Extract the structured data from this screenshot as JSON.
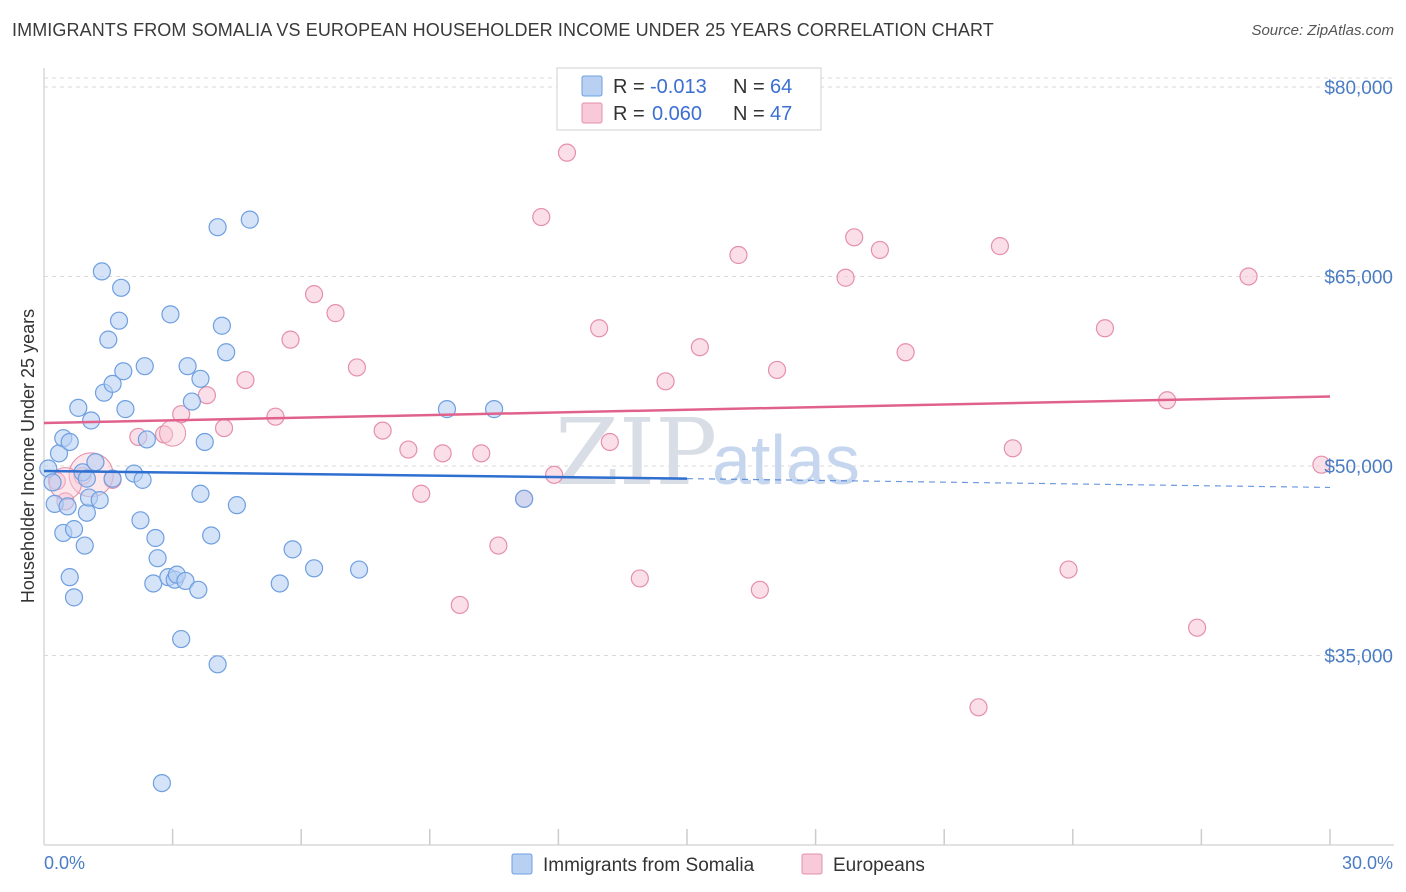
{
  "header": {
    "title": "IMMIGRANTS FROM SOMALIA VS EUROPEAN HOUSEHOLDER INCOME UNDER 25 YEARS CORRELATION CHART",
    "source": "Source: ZipAtlas.com"
  },
  "legend": {
    "r_label": "R =",
    "n_label": "N =",
    "somalia": {
      "r": "-0.013",
      "n": "64"
    },
    "europeans": {
      "r": "0.060",
      "n": "47"
    }
  },
  "watermark": {
    "zip": "ZIP",
    "atlas": "atlas"
  },
  "colors": {
    "somalia_fill": "#b8d1f3",
    "somalia_stroke": "#6f9fe0",
    "somalia_line": "#2f6fd0",
    "europeans_fill": "#f8c9d8",
    "europeans_stroke": "#e58fac",
    "europeans_line": "#e0628c",
    "tick_text": "#4a7cc4",
    "grid": "#d9d9d9"
  },
  "chart_data": {
    "type": "scatter",
    "title": "IMMIGRANTS FROM SOMALIA VS EUROPEAN HOUSEHOLDER INCOME UNDER 25 YEARS CORRELATION CHART",
    "xlabel": "",
    "ylabel": "Householder Income Under 25 years",
    "xlim": [
      0,
      30
    ],
    "ylim": [
      20000,
      81500
    ],
    "x_tick_labels": [
      "0.0%",
      "30.0%"
    ],
    "y_ticks": [
      35000,
      50000,
      65000,
      80000
    ],
    "y_tick_labels": [
      "$35,000",
      "$50,000",
      "$65,000",
      "$80,000"
    ],
    "grid": true,
    "legend_position": "top-center",
    "series": [
      {
        "name": "Immigrants from Somalia",
        "color": "#6f9fe0",
        "trend": {
          "x": [
            0,
            15
          ],
          "y": [
            49600,
            49000
          ],
          "dashed_x": [
            15,
            30
          ],
          "dashed_y": [
            49000,
            48300
          ]
        },
        "points": [
          [
            0.1,
            49800
          ],
          [
            0.2,
            48700
          ],
          [
            0.25,
            47000
          ],
          [
            0.35,
            51000
          ],
          [
            0.45,
            52200
          ],
          [
            0.45,
            44700
          ],
          [
            0.55,
            46800
          ],
          [
            0.6,
            51900
          ],
          [
            0.6,
            41200
          ],
          [
            0.7,
            39600
          ],
          [
            0.7,
            45000
          ],
          [
            0.8,
            54600
          ],
          [
            0.9,
            49500
          ],
          [
            0.95,
            43700
          ],
          [
            1.0,
            46300
          ],
          [
            1.05,
            47500
          ],
          [
            1.1,
            53600
          ],
          [
            1.2,
            50300
          ],
          [
            1.3,
            47300
          ],
          [
            1.35,
            65400
          ],
          [
            1.4,
            55800
          ],
          [
            1.5,
            60000
          ],
          [
            1.6,
            56500
          ],
          [
            1.6,
            49000
          ],
          [
            1.75,
            61500
          ],
          [
            1.8,
            64100
          ],
          [
            1.85,
            57500
          ],
          [
            1.9,
            54500
          ],
          [
            2.1,
            49400
          ],
          [
            2.25,
            45700
          ],
          [
            2.3,
            48900
          ],
          [
            2.35,
            57900
          ],
          [
            2.4,
            52100
          ],
          [
            2.55,
            40700
          ],
          [
            2.6,
            44300
          ],
          [
            2.65,
            42700
          ],
          [
            2.75,
            24900
          ],
          [
            2.9,
            41200
          ],
          [
            2.95,
            62000
          ],
          [
            3.05,
            41000
          ],
          [
            3.1,
            41400
          ],
          [
            3.2,
            36300
          ],
          [
            3.3,
            40900
          ],
          [
            3.35,
            57900
          ],
          [
            3.45,
            55100
          ],
          [
            3.6,
            40200
          ],
          [
            3.65,
            56900
          ],
          [
            3.65,
            47800
          ],
          [
            3.75,
            51900
          ],
          [
            3.9,
            44500
          ],
          [
            4.05,
            34300
          ],
          [
            4.05,
            68900
          ],
          [
            4.15,
            61100
          ],
          [
            4.25,
            59000
          ],
          [
            4.5,
            46900
          ],
          [
            4.8,
            69500
          ],
          [
            5.5,
            40700
          ],
          [
            5.8,
            43400
          ],
          [
            6.3,
            41900
          ],
          [
            7.35,
            41800
          ],
          [
            9.4,
            54500
          ],
          [
            10.5,
            54500
          ],
          [
            11.2,
            47400
          ],
          [
            1.0,
            49000
          ]
        ]
      },
      {
        "name": "Europeans",
        "color": "#e58fac",
        "trend": {
          "x": [
            0,
            30
          ],
          "y": [
            53400,
            55500
          ]
        },
        "points": [
          [
            0.3,
            48800
          ],
          [
            0.5,
            47200
          ],
          [
            0.9,
            49200
          ],
          [
            1.6,
            48900
          ],
          [
            2.2,
            52300
          ],
          [
            2.8,
            52500
          ],
          [
            3.2,
            54100
          ],
          [
            3.8,
            55600
          ],
          [
            4.2,
            53000
          ],
          [
            4.7,
            56800
          ],
          [
            5.4,
            53900
          ],
          [
            5.75,
            60000
          ],
          [
            6.3,
            63600
          ],
          [
            6.8,
            62100
          ],
          [
            7.3,
            57800
          ],
          [
            7.9,
            52800
          ],
          [
            8.5,
            51300
          ],
          [
            8.8,
            47800
          ],
          [
            9.3,
            51000
          ],
          [
            9.7,
            39000
          ],
          [
            10.2,
            51000
          ],
          [
            10.6,
            43700
          ],
          [
            11.2,
            47400
          ],
          [
            11.6,
            69700
          ],
          [
            11.9,
            49300
          ],
          [
            12.2,
            74800
          ],
          [
            12.95,
            60900
          ],
          [
            13.2,
            51900
          ],
          [
            13.9,
            41100
          ],
          [
            14.5,
            56700
          ],
          [
            15.3,
            59400
          ],
          [
            16.2,
            66700
          ],
          [
            16.7,
            40200
          ],
          [
            17.1,
            57600
          ],
          [
            18.7,
            64900
          ],
          [
            18.9,
            68100
          ],
          [
            19.5,
            67100
          ],
          [
            20.1,
            59000
          ],
          [
            21.8,
            30900
          ],
          [
            22.3,
            67400
          ],
          [
            22.6,
            51400
          ],
          [
            23.9,
            41800
          ],
          [
            24.75,
            60900
          ],
          [
            26.2,
            55200
          ],
          [
            26.9,
            37200
          ],
          [
            28.1,
            65000
          ],
          [
            29.8,
            50100
          ]
        ]
      }
    ]
  }
}
